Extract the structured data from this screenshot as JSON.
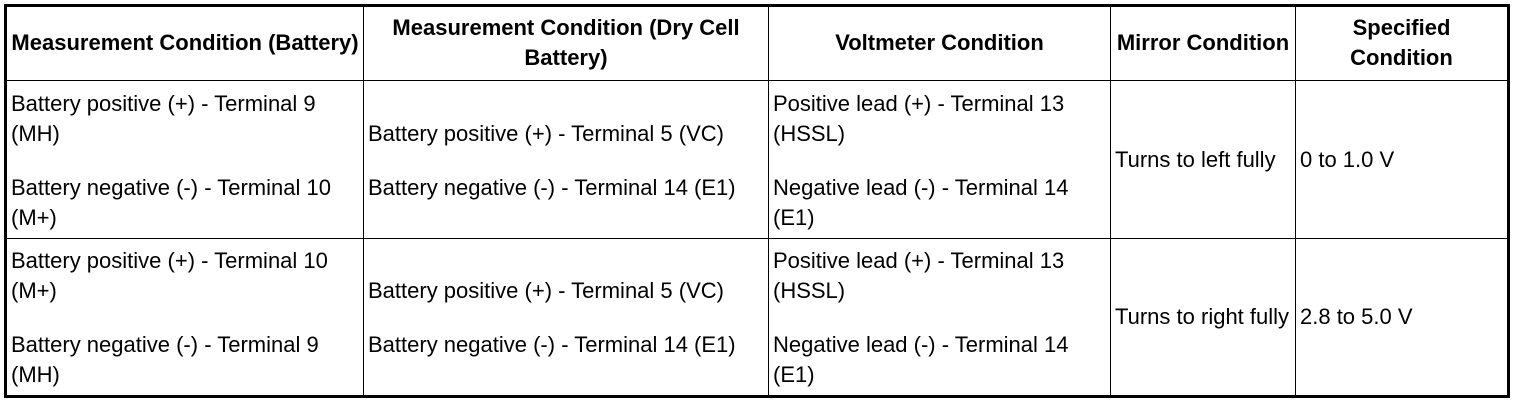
{
  "table": {
    "headers": [
      "Measurement Condition (Battery)",
      "Measurement Condition (Dry Cell Battery)",
      "Voltmeter Condition",
      "Mirror Condition",
      "Specified Condition"
    ],
    "rows": [
      {
        "battery": [
          "Battery positive (+) - Terminal 9 (MH)",
          "Battery negative (-) - Terminal 10 (M+)"
        ],
        "dry_cell": [
          "Battery positive (+) - Terminal 5 (VC)",
          "Battery negative (-) - Terminal 14 (E1)"
        ],
        "voltmeter": [
          "Positive lead (+) - Terminal 13 (HSSL)",
          "Negative lead (-) - Terminal 14 (E1)"
        ],
        "mirror": "Turns to left fully",
        "specified": "0 to 1.0 V"
      },
      {
        "battery": [
          "Battery positive (+) - Terminal 10 (M+)",
          "Battery negative (-) - Terminal 9 (MH)"
        ],
        "dry_cell": [
          "Battery positive (+) - Terminal 5 (VC)",
          "Battery negative (-) - Terminal 14 (E1)"
        ],
        "voltmeter": [
          "Positive lead (+) - Terminal 13 (HSSL)",
          "Negative lead (-) - Terminal 14 (E1)"
        ],
        "mirror": "Turns to right fully",
        "specified": "2.8 to 5.0 V"
      }
    ]
  }
}
